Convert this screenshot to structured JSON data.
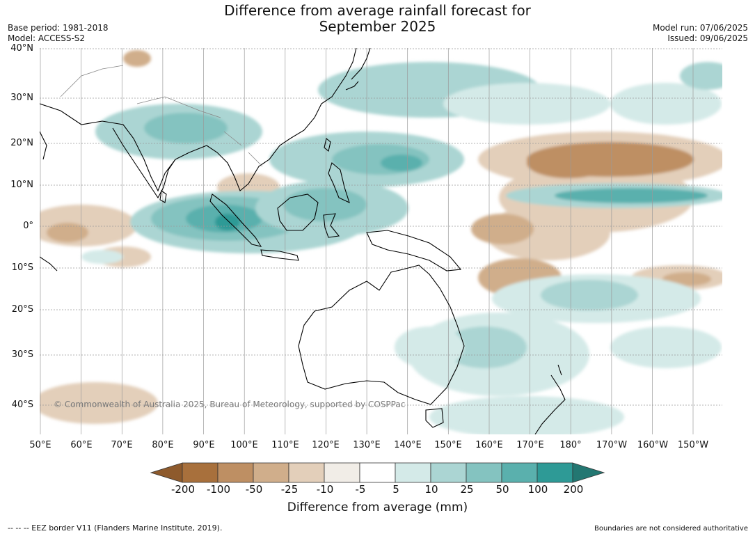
{
  "title_line1": "Difference from average rainfall forecast for",
  "title_line2": "September 2025",
  "base_period": "Base period: 1981-2018",
  "model": "Model: ACCESS-S2",
  "model_run": "Model run: 07/06/2025",
  "issued": "Issued: 09/06/2025",
  "copyright": "© Commonwealth of Australia 2025, Bureau of Meteorology, supported by COSPPac",
  "lat_labels": [
    "40°N",
    "30°N",
    "20°N",
    "10°N",
    "0°",
    "10°S",
    "20°S",
    "30°S",
    "40°S"
  ],
  "lon_labels": [
    "50°E",
    "60°E",
    "70°E",
    "80°E",
    "90°E",
    "100°E",
    "110°E",
    "120°E",
    "130°E",
    "140°E",
    "150°E",
    "160°E",
    "170°E",
    "180°",
    "170°W",
    "160°W",
    "150°W"
  ],
  "colorbar": {
    "ticks": [
      "-200",
      "-100",
      "-50",
      "-25",
      "-10",
      "-5",
      "5",
      "10",
      "25",
      "50",
      "100",
      "200"
    ],
    "colors": [
      "#a8703c",
      "#be8f63",
      "#d0ae8b",
      "#e3cfba",
      "#f1ede7",
      "#ffffff",
      "#d4eae8",
      "#abd5d3",
      "#84c3c0",
      "#5ab0ad",
      "#2e9a96"
    ],
    "under_color": "#8e5a2c",
    "over_color": "#237772",
    "label": "Difference from average (mm)"
  },
  "footer_left": "--  --  -- EEZ border V11 (Flanders Marine Institute, 2019).",
  "footer_right": "Boundaries are not considered authoritative"
}
